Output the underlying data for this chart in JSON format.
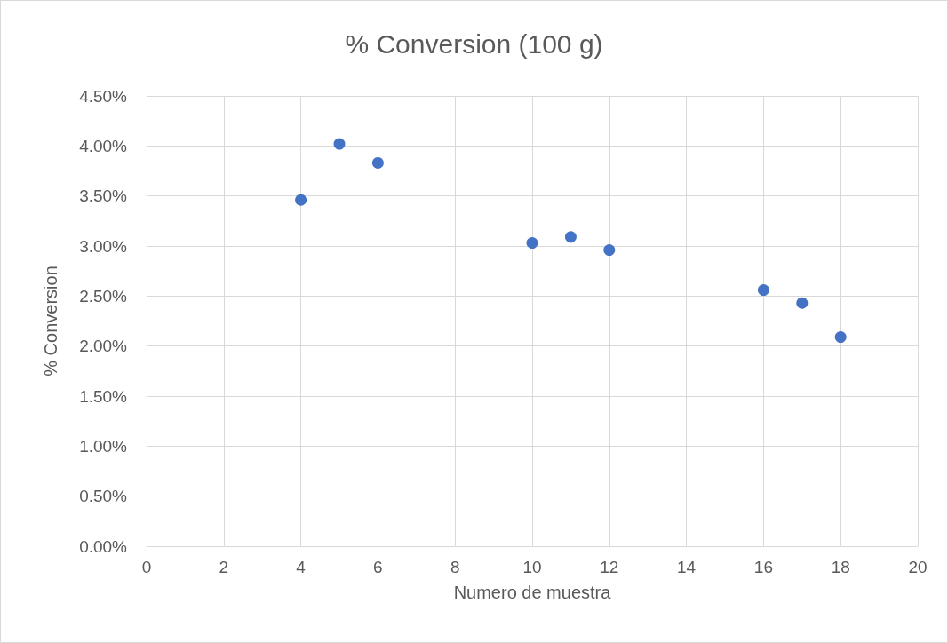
{
  "chart_data": {
    "type": "scatter",
    "title": "% Conversion (100 g)",
    "xlabel": "Numero de muestra",
    "ylabel": "% Conversion",
    "x": [
      4,
      5,
      6,
      10,
      11,
      12,
      16,
      17,
      18
    ],
    "series": [
      {
        "color": "#4472c4",
        "values": [
          3.46,
          4.02,
          3.83,
          3.03,
          3.09,
          2.96,
          2.56,
          2.43,
          2.09
        ]
      }
    ],
    "xlim": [
      0,
      20
    ],
    "xticks": [
      0,
      2,
      4,
      6,
      8,
      10,
      12,
      14,
      16,
      18,
      20
    ],
    "ylim": [
      0,
      4.5
    ],
    "yticks": [
      {
        "value": 0,
        "label": "0.00%"
      },
      {
        "value": 0.5,
        "label": "0.50%"
      },
      {
        "value": 1,
        "label": "1.00%"
      },
      {
        "value": 1.5,
        "label": "1.50%"
      },
      {
        "value": 2,
        "label": "2.00%"
      },
      {
        "value": 2.5,
        "label": "2.50%"
      },
      {
        "value": 3,
        "label": "3.00%"
      },
      {
        "value": 3.5,
        "label": "3.50%"
      },
      {
        "value": 4,
        "label": "4.00%"
      },
      {
        "value": 4.5,
        "label": "4.50%"
      }
    ],
    "grid": true,
    "marker": "circle"
  }
}
